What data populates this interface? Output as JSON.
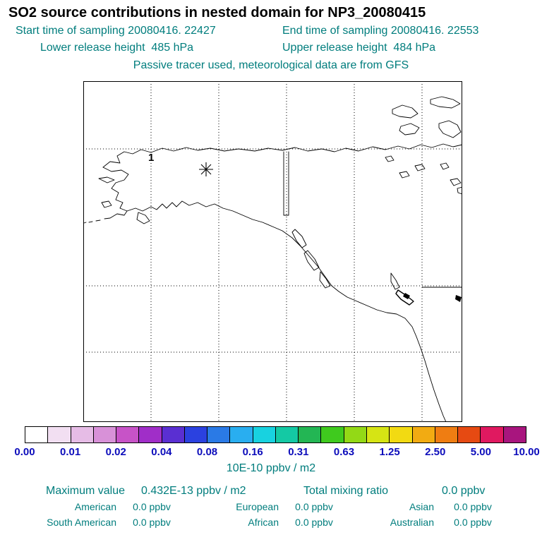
{
  "title": "SO2 source contributions in nested domain for NP3_20080415",
  "header": {
    "start_time": "Start time of sampling 20080416. 22427",
    "end_time": "End time of sampling 20080416. 22553",
    "lower_release": "Lower release height  485 hPa",
    "upper_release": "Upper release height  484 hPa",
    "tracer_note": "Passive tracer used, meteorological data are from GFS"
  },
  "map": {
    "marker_label": "1",
    "marker_symbol": "asterisk"
  },
  "colorbar": {
    "unit_label": "10E-10 ppbv / m2",
    "ticks": [
      "0.00",
      "0.01",
      "0.02",
      "0.04",
      "0.08",
      "0.16",
      "0.31",
      "0.63",
      "1.25",
      "2.50",
      "5.00",
      "10.00"
    ],
    "colors": [
      "#ffffff",
      "#f2dff2",
      "#e6bce6",
      "#d891d8",
      "#c753c7",
      "#a02ec8",
      "#5a2fd2",
      "#2b41e0",
      "#2a7ae6",
      "#29aef0",
      "#18d2e0",
      "#14c9a4",
      "#23b654",
      "#3fca1e",
      "#93d916",
      "#d6e414",
      "#f2da12",
      "#f2ab12",
      "#ef7d12",
      "#e64a12",
      "#e01960",
      "#a8157e"
    ]
  },
  "stats": {
    "max_label": "Maximum value",
    "max_value": "0.432E-13 ppbv / m2",
    "total_label": "Total mixing ratio",
    "total_value": "0.0 ppbv",
    "regions": [
      {
        "name": "American",
        "value": "0.0 ppbv"
      },
      {
        "name": "European",
        "value": "0.0 ppbv"
      },
      {
        "name": "Asian",
        "value": "0.0 ppbv"
      },
      {
        "name": "South American",
        "value": "0.0 ppbv"
      },
      {
        "name": "African",
        "value": "0.0 ppbv"
      },
      {
        "name": "Australian",
        "value": "0.0 ppbv"
      }
    ]
  },
  "colors": {
    "heading_teal": "#007d7d",
    "tick_blue": "#0d0dbb"
  },
  "chart_data": {
    "type": "heatmap",
    "title": "SO2 source contributions in nested domain for NP3_20080415",
    "subtitle": [
      "Start time of sampling 20080416. 22427",
      "End time of sampling 20080416. 22553",
      "Lower release height 485 hPa",
      "Upper release height 484 hPa",
      "Passive tracer used, meteorological data are from GFS"
    ],
    "projection": "map of Alaska / western North America with dotted lat-lon grid",
    "colorbar_ticks": [
      0.0,
      0.01,
      0.02,
      0.04,
      0.08,
      0.16,
      0.31,
      0.63,
      1.25,
      2.5,
      5.0,
      10.0
    ],
    "colorbar_unit": "10E-10 ppbv / m2",
    "maximum_value": "0.432E-13 ppbv / m2",
    "total_mixing_ratio_ppbv": 0.0,
    "region_contributions_ppbv": {
      "American": 0.0,
      "European": 0.0,
      "Asian": 0.0,
      "South American": 0.0,
      "African": 0.0,
      "Australian": 0.0
    },
    "annotations": [
      "receptor marker '1' with asterisk symbol located over central Alaska"
    ],
    "notes": "No non-zero concentration field visible on the map (all contributions 0.0 ppbv)."
  }
}
